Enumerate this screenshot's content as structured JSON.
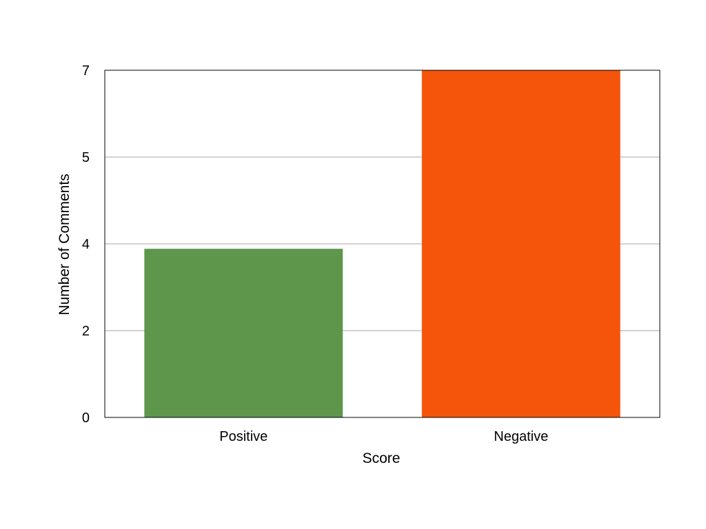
{
  "chart_data": {
    "type": "bar",
    "title": "",
    "xlabel": "Score",
    "ylabel": "Number of Comments",
    "categories": [
      "Positive",
      "Negative"
    ],
    "values": [
      3.4,
      7
    ],
    "bar_colors": [
      "#5e964b",
      "#f5540b"
    ],
    "ylim": [
      0,
      7
    ],
    "yticks": [
      {
        "value": 0,
        "label": "0"
      },
      {
        "value": 1.75,
        "label": "2"
      },
      {
        "value": 3.5,
        "label": "4"
      },
      {
        "value": 5.25,
        "label": "5"
      },
      {
        "value": 7,
        "label": "7"
      }
    ],
    "grid": "horizontal",
    "grid_color": "#a6a6a6",
    "legend": "none"
  }
}
